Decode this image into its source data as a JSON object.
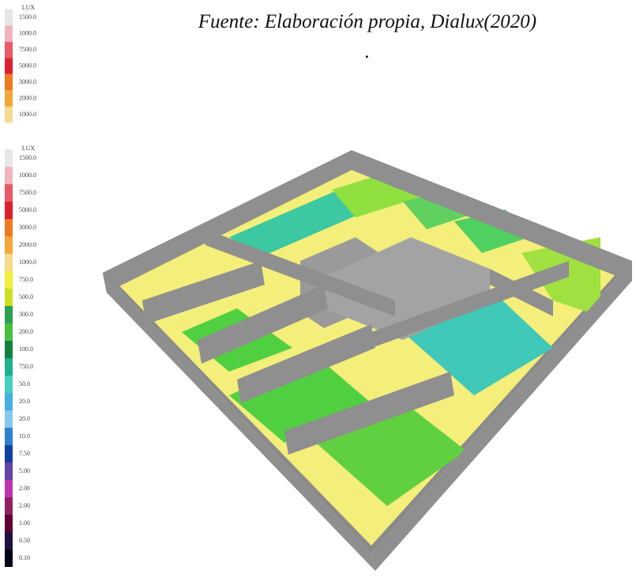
{
  "caption": "Fuente: Elaboración propia, Dialux(2020)",
  "caption_mark": ".",
  "legends": [
    {
      "unit": "LUX",
      "items": [
        {
          "label": "1500.0",
          "color": "#e6e6e6"
        },
        {
          "label": "1000.0",
          "color": "#f2b4bc"
        },
        {
          "label": "7500.0",
          "color": "#ea5a66"
        },
        {
          "label": "5000.0",
          "color": "#dc2030"
        },
        {
          "label": "3000.0",
          "color": "#ee7a22"
        },
        {
          "label": "2000.0",
          "color": "#f4a636"
        },
        {
          "label": "1000.0",
          "color": "#f8da8e"
        }
      ]
    },
    {
      "unit": "LUX",
      "items": [
        {
          "label": "1500.0",
          "color": "#e6e6e6"
        },
        {
          "label": "1000.0",
          "color": "#f2b4bc"
        },
        {
          "label": "7500.0",
          "color": "#ea5a66"
        },
        {
          "label": "5000.0",
          "color": "#dc2030"
        },
        {
          "label": "3000.0",
          "color": "#ee7a22"
        },
        {
          "label": "2000.0",
          "color": "#f4a636"
        },
        {
          "label": "1000.0",
          "color": "#f8da8e"
        },
        {
          "label": "750.0",
          "color": "#f2ee3c"
        },
        {
          "label": "500.0",
          "color": "#cce020"
        },
        {
          "label": "300.0",
          "color": "#2aa050"
        },
        {
          "label": "200.0",
          "color": "#48c040"
        },
        {
          "label": "100.0",
          "color": "#148040"
        },
        {
          "label": "750.0",
          "color": "#20b08c"
        },
        {
          "label": "50.0",
          "color": "#44d0c0"
        },
        {
          "label": "20.0",
          "color": "#44b0e0"
        },
        {
          "label": "20.0",
          "color": "#86c8f0"
        },
        {
          "label": "10.0",
          "color": "#2e80d0"
        },
        {
          "label": "7.50",
          "color": "#1040a0"
        },
        {
          "label": "5.00",
          "color": "#6444a4"
        },
        {
          "label": "2.00",
          "color": "#c032b0"
        },
        {
          "label": "2.00",
          "color": "#902060"
        },
        {
          "label": "1.00",
          "color": "#600030"
        },
        {
          "label": "0.50",
          "color": "#201040"
        },
        {
          "label": "0.10",
          "color": "#000018"
        }
      ]
    }
  ]
}
